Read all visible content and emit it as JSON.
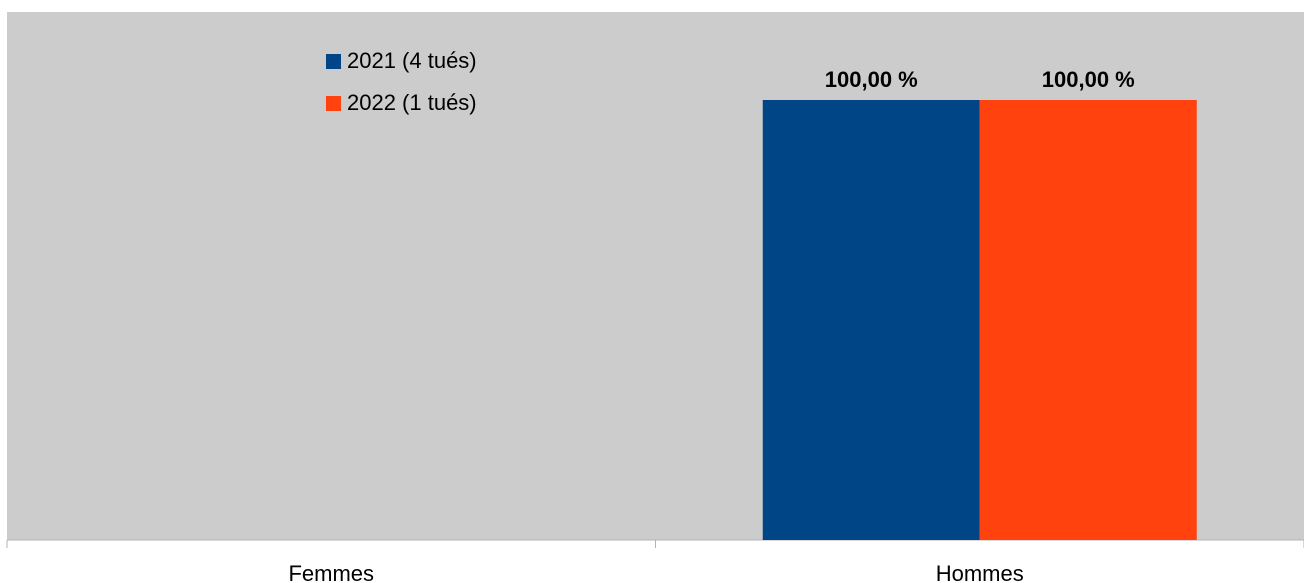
{
  "chart_data": {
    "type": "bar",
    "categories": [
      "Femmes",
      "Hommes"
    ],
    "series": [
      {
        "name": "2021 (4 tués)",
        "color": "#004586",
        "values": [
          null,
          100
        ],
        "labels": [
          "",
          "100,00 %"
        ]
      },
      {
        "name": "2022 (1 tués)",
        "color": "#ff420e",
        "values": [
          null,
          100
        ],
        "labels": [
          "",
          "100,00 %"
        ]
      }
    ],
    "title": "",
    "xlabel": "",
    "ylabel": "",
    "ylim": [
      0,
      120
    ],
    "grid": false,
    "legend_position": "top-center",
    "plot_background": "#cccccc"
  }
}
